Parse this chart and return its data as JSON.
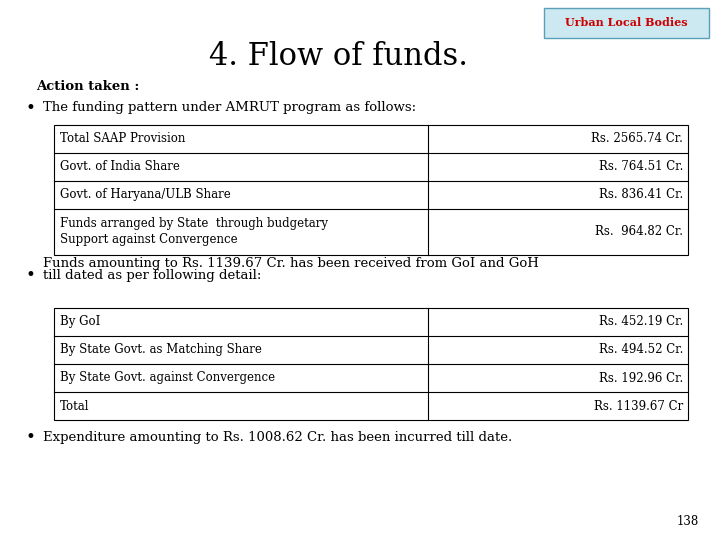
{
  "title": "4. Flow of funds.",
  "title_fontsize": 22,
  "header_label": "Urban Local Bodies",
  "header_bg": "#cce8f0",
  "header_border": "#5aa0b8",
  "header_text_color": "#cc0000",
  "action_taken": "Action taken :",
  "bullet1_text": "The funding pattern under AMRUT program as follows:",
  "table1_rows": [
    [
      "Total SAAP Provision",
      "Rs. 2565.74 Cr."
    ],
    [
      "Govt. of India Share",
      "Rs. 764.51 Cr."
    ],
    [
      "Govt. of Haryana/ULB Share",
      "Rs. 836.41 Cr."
    ],
    [
      "Funds arranged by State  through budgetary\nSupport against Convergence",
      "Rs.  964.82 Cr."
    ]
  ],
  "bullet2_line1": "Funds amounting to Rs. 1139.67 Cr. has been received from GoI and GoH",
  "bullet2_line2": "till dated as per following detail:",
  "table2_rows": [
    [
      "By GoI",
      "Rs. 452.19 Cr."
    ],
    [
      "By State Govt. as Matching Share",
      "Rs. 494.52 Cr."
    ],
    [
      "By State Govt. against Convergence",
      "Rs. 192.96 Cr."
    ],
    [
      "Total",
      "Rs. 1139.67 Cr"
    ]
  ],
  "bullet3_text": "Expenditure amounting to Rs. 1008.62 Cr. has been incurred till date.",
  "page_number": "138",
  "bg_color": "#ffffff",
  "text_color": "#000000",
  "table_border_color": "#000000"
}
